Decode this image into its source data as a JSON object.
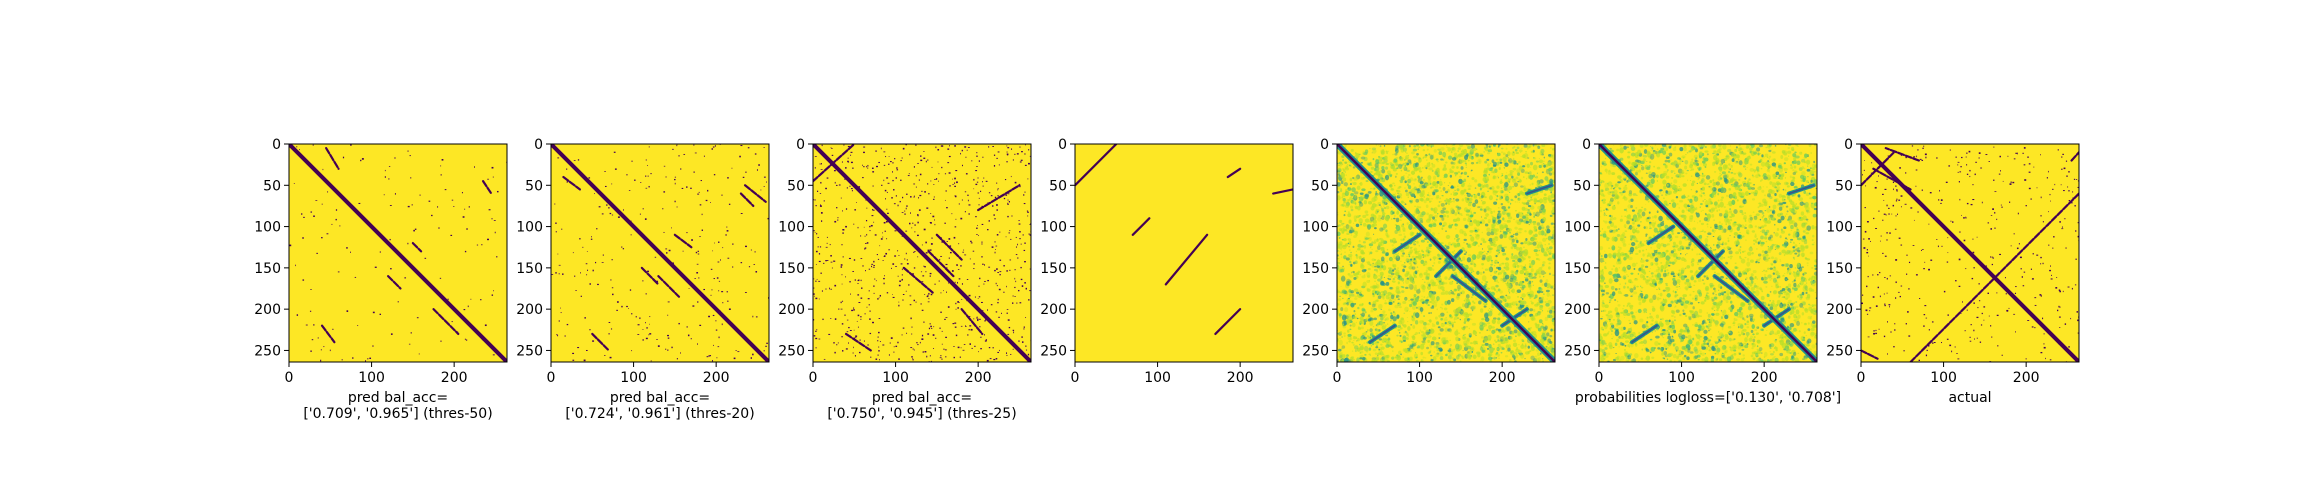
{
  "colors": {
    "background_yellow": "#fde725",
    "line_purple": "#440154",
    "teal": "#21918c",
    "green": "#5ec962",
    "lightgreen": "#b5de2b",
    "blue": "#3b528b"
  },
  "chart_data": [
    {
      "type": "heatmap",
      "colormap": "viridis",
      "size": 264,
      "xlim": [
        0,
        264
      ],
      "ylim": [
        264,
        0
      ],
      "xticks": [
        "0",
        "100",
        "200"
      ],
      "yticks": [
        "0",
        "50",
        "100",
        "150",
        "200",
        "250"
      ],
      "caption_lines": [
        "pred bal_acc=",
        "['0.709', '0.965'] (thres-50)"
      ],
      "balanced_accuracy": [
        0.709,
        0.965
      ],
      "threshold": 50,
      "diagonal": {
        "start": 0,
        "end": 264,
        "strength": "strong"
      },
      "segments": [
        [
          120,
          160,
          135,
          175
        ],
        [
          175,
          200,
          205,
          230
        ],
        [
          235,
          45,
          245,
          60
        ],
        [
          40,
          220,
          55,
          240
        ],
        [
          150,
          120,
          160,
          130
        ],
        [
          45,
          5,
          60,
          30
        ]
      ],
      "speckle_density": 0.002
    },
    {
      "type": "heatmap",
      "colormap": "viridis",
      "size": 264,
      "xlim": [
        0,
        264
      ],
      "ylim": [
        264,
        0
      ],
      "xticks": [
        "0",
        "100",
        "200"
      ],
      "yticks": [
        "0",
        "50",
        "100",
        "150",
        "200",
        "250"
      ],
      "caption_lines": [
        "pred bal_acc=",
        "['0.724', '0.961'] (thres-20)"
      ],
      "balanced_accuracy": [
        0.724,
        0.961
      ],
      "threshold": 20,
      "diagonal": {
        "start": 0,
        "end": 264,
        "strength": "strong"
      },
      "segments": [
        [
          110,
          150,
          130,
          170
        ],
        [
          130,
          160,
          155,
          185
        ],
        [
          235,
          50,
          260,
          70
        ],
        [
          230,
          60,
          245,
          75
        ],
        [
          50,
          230,
          70,
          250
        ],
        [
          150,
          110,
          170,
          125
        ],
        [
          15,
          40,
          35,
          55
        ]
      ],
      "speckle_density": 0.004
    },
    {
      "type": "heatmap",
      "colormap": "viridis",
      "size": 264,
      "xlim": [
        0,
        264
      ],
      "ylim": [
        264,
        0
      ],
      "xticks": [
        "0",
        "100",
        "200"
      ],
      "yticks": [
        "0",
        "50",
        "100",
        "150",
        "200",
        "250"
      ],
      "caption_lines": [
        "pred bal_acc=",
        "['0.750', '0.945'] (thres-25)"
      ],
      "balanced_accuracy": [
        0.75,
        0.945
      ],
      "threshold": 25,
      "diagonal": {
        "start": 0,
        "end": 264,
        "strength": "strong"
      },
      "segments": [
        [
          0,
          45,
          50,
          0
        ],
        [
          110,
          150,
          145,
          180
        ],
        [
          140,
          130,
          170,
          160
        ],
        [
          200,
          80,
          250,
          50
        ],
        [
          40,
          230,
          70,
          250
        ],
        [
          150,
          110,
          180,
          140
        ],
        [
          180,
          200,
          205,
          230
        ]
      ],
      "speckle_density": 0.012
    },
    {
      "type": "heatmap",
      "colormap": "viridis",
      "size": 264,
      "xlim": [
        0,
        264
      ],
      "ylim": [
        264,
        0
      ],
      "xticks": [
        "0",
        "100",
        "200"
      ],
      "yticks": [
        "0",
        "50",
        "100",
        "150",
        "200",
        "250"
      ],
      "caption_lines": [],
      "diagonal": {
        "start": 0,
        "end": 0,
        "strength": "none"
      },
      "segments": [
        [
          0,
          50,
          50,
          0
        ],
        [
          70,
          110,
          90,
          90
        ],
        [
          110,
          170,
          160,
          110
        ],
        [
          170,
          230,
          200,
          200
        ],
        [
          240,
          60,
          264,
          55
        ],
        [
          185,
          40,
          200,
          30
        ]
      ],
      "speckle_density": 0.0
    },
    {
      "type": "heatmap",
      "colormap": "viridis",
      "size": 264,
      "xlim": [
        0,
        264
      ],
      "ylim": [
        264,
        0
      ],
      "xticks": [
        "0",
        "100",
        "200"
      ],
      "yticks": [
        "0",
        "50",
        "100",
        "150",
        "200",
        "250"
      ],
      "caption_lines": [],
      "diagonal": {
        "start": 0,
        "end": 264,
        "strength": "strong"
      },
      "segments": [
        [
          120,
          160,
          150,
          130
        ],
        [
          140,
          160,
          180,
          190
        ],
        [
          230,
          60,
          260,
          50
        ],
        [
          40,
          240,
          70,
          220
        ],
        [
          200,
          220,
          230,
          200
        ],
        [
          70,
          130,
          100,
          110
        ]
      ],
      "speckle_density": 0.05,
      "probability_map": true
    },
    {
      "type": "heatmap",
      "colormap": "viridis",
      "size": 264,
      "xlim": [
        0,
        264
      ],
      "ylim": [
        264,
        0
      ],
      "xticks": [
        "0",
        "100",
        "200"
      ],
      "yticks": [
        "0",
        "50",
        "100",
        "150",
        "200",
        "250"
      ],
      "caption_lines": [
        "probabilities logloss=['0.130', '0.708']"
      ],
      "log_loss": [
        0.13,
        0.708
      ],
      "diagonal": {
        "start": 0,
        "end": 264,
        "strength": "strong"
      },
      "segments": [
        [
          120,
          160,
          150,
          130
        ],
        [
          140,
          160,
          180,
          190
        ],
        [
          230,
          60,
          260,
          50
        ],
        [
          40,
          240,
          70,
          220
        ],
        [
          200,
          220,
          230,
          200
        ],
        [
          60,
          120,
          90,
          100
        ]
      ],
      "speckle_density": 0.045,
      "probability_map": true
    },
    {
      "type": "heatmap",
      "colormap": "viridis",
      "size": 264,
      "xlim": [
        0,
        264
      ],
      "ylim": [
        264,
        0
      ],
      "xticks": [
        "0",
        "100",
        "200"
      ],
      "yticks": [
        "0",
        "50",
        "100",
        "150",
        "200",
        "250"
      ],
      "caption_lines": [
        "actual"
      ],
      "diagonal": {
        "start": 0,
        "end": 264,
        "strength": "strong"
      },
      "segments": [
        [
          60,
          264,
          264,
          60
        ],
        [
          0,
          50,
          40,
          10
        ],
        [
          15,
          30,
          60,
          55
        ],
        [
          70,
          20,
          30,
          5
        ],
        [
          0,
          250,
          20,
          260
        ],
        [
          255,
          20,
          264,
          10
        ]
      ],
      "speckle_density": 0.006
    }
  ]
}
